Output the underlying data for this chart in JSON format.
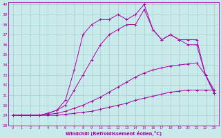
{
  "xlabel": "Windchill (Refroidissement éolien,°C)",
  "xlim": [
    -0.5,
    23.5
  ],
  "ylim": [
    28,
    40.2
  ],
  "yticks": [
    28,
    29,
    30,
    31,
    32,
    33,
    34,
    35,
    36,
    37,
    38,
    39,
    40
  ],
  "xticks": [
    0,
    1,
    2,
    3,
    4,
    5,
    6,
    7,
    8,
    9,
    10,
    11,
    12,
    13,
    14,
    15,
    16,
    17,
    18,
    19,
    20,
    21,
    22,
    23
  ],
  "background_color": "#c8eaea",
  "grid_color": "#a8cccc",
  "line_color": "#aa00aa",
  "series": [
    {
      "x": [
        0,
        1,
        2,
        3,
        4,
        5,
        6,
        7,
        8,
        9,
        10,
        11,
        12,
        13,
        14,
        15,
        16,
        17,
        18,
        19,
        20,
        21,
        22,
        23
      ],
      "y": [
        29.0,
        29.0,
        29.0,
        29.0,
        29.0,
        29.0,
        29.1,
        29.2,
        29.3,
        29.4,
        29.6,
        29.8,
        30.0,
        30.2,
        30.5,
        30.7,
        30.9,
        31.1,
        31.3,
        31.4,
        31.5,
        31.5,
        31.5,
        31.5
      ]
    },
    {
      "x": [
        0,
        1,
        2,
        3,
        4,
        5,
        6,
        7,
        8,
        9,
        10,
        11,
        12,
        13,
        14,
        15,
        16,
        17,
        18,
        19,
        20,
        21,
        22,
        23
      ],
      "y": [
        29.0,
        29.0,
        29.0,
        29.0,
        29.1,
        29.2,
        29.4,
        29.7,
        30.0,
        30.4,
        30.8,
        31.3,
        31.8,
        32.3,
        32.8,
        33.2,
        33.5,
        33.7,
        33.9,
        34.0,
        34.1,
        34.2,
        33.0,
        31.2
      ]
    },
    {
      "x": [
        0,
        1,
        2,
        3,
        4,
        5,
        6,
        7,
        8,
        9,
        10,
        11,
        12,
        13,
        14,
        15,
        16,
        17,
        18,
        19,
        20,
        21,
        22,
        23
      ],
      "y": [
        29.0,
        29.0,
        29.0,
        29.0,
        29.2,
        29.5,
        30.0,
        31.5,
        33.0,
        34.5,
        36.0,
        37.0,
        37.5,
        38.0,
        38.0,
        39.5,
        37.5,
        36.5,
        37.0,
        36.5,
        36.0,
        36.0,
        33.0,
        31.2
      ]
    },
    {
      "x": [
        0,
        1,
        2,
        3,
        4,
        5,
        6,
        7,
        8,
        9,
        10,
        11,
        12,
        13,
        14,
        15,
        16,
        17,
        18,
        19,
        20,
        21,
        22,
        23
      ],
      "y": [
        29.0,
        29.0,
        29.0,
        29.0,
        29.2,
        29.5,
        30.5,
        33.5,
        37.0,
        38.0,
        38.5,
        38.5,
        39.0,
        38.5,
        39.0,
        40.0,
        37.5,
        36.5,
        37.0,
        36.5,
        36.5,
        36.5,
        33.0,
        31.5
      ]
    }
  ]
}
